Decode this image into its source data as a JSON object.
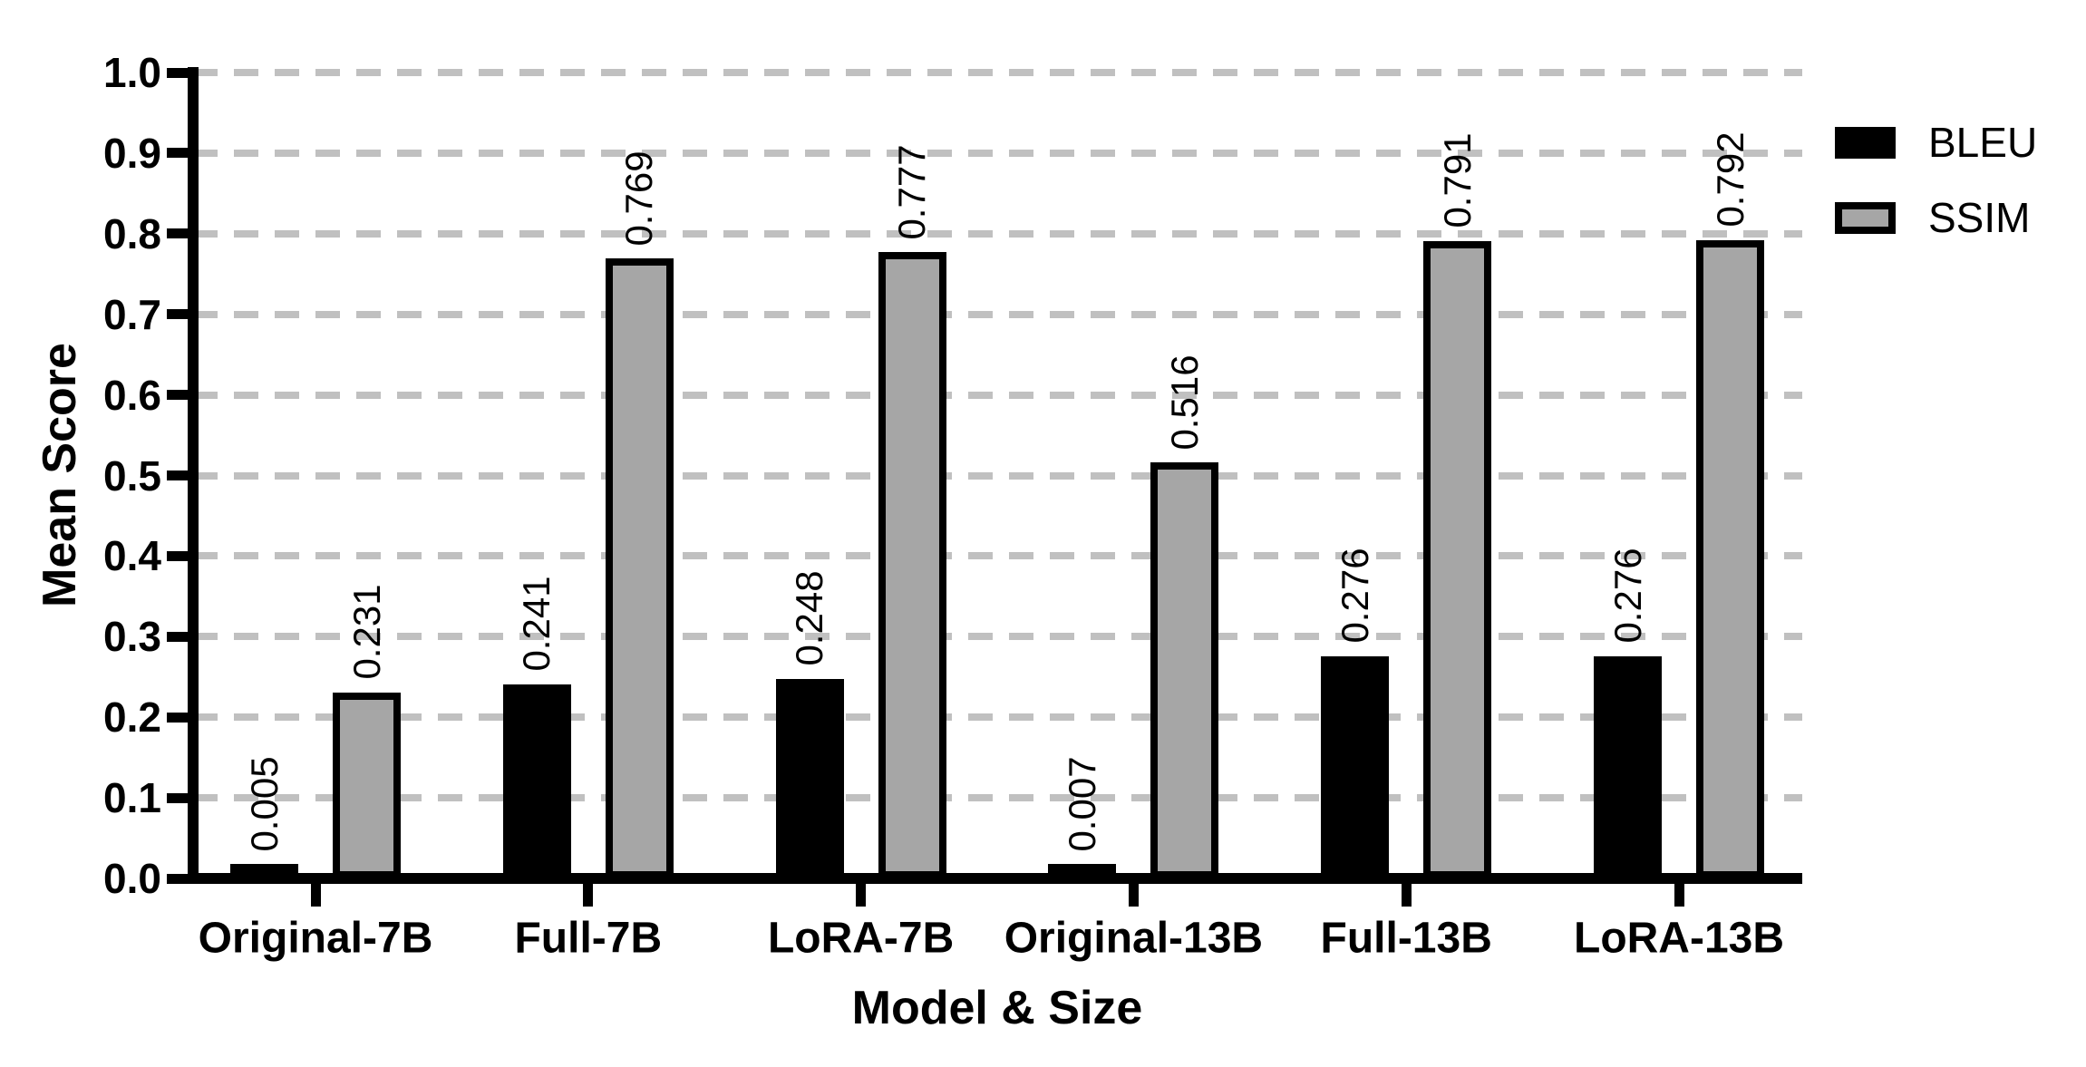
{
  "chart_data": {
    "type": "bar",
    "title": "",
    "xlabel": "Model & Size",
    "ylabel": "Mean Score",
    "categories": [
      "Original-7B",
      "Full-7B",
      "LoRA-7B",
      "Original-13B",
      "Full-13B",
      "LoRA-13B"
    ],
    "series": [
      {
        "name": "BLEU",
        "color": "#000000",
        "values": [
          0.005,
          0.241,
          0.248,
          0.007,
          0.276,
          0.276
        ],
        "labels": [
          "0.005",
          "0.241",
          "0.248",
          "0.007",
          "0.276",
          "0.276"
        ]
      },
      {
        "name": "SSIM",
        "color": "#a6a6a6",
        "values": [
          0.231,
          0.769,
          0.777,
          0.516,
          0.791,
          0.792
        ],
        "labels": [
          "0.231",
          "0.769",
          "0.777",
          "0.516",
          "0.791",
          "0.792"
        ]
      }
    ],
    "ylim": [
      0.0,
      1.0
    ],
    "yticks": [
      "0.0",
      "0.1",
      "0.2",
      "0.3",
      "0.4",
      "0.5",
      "0.6",
      "0.7",
      "0.8",
      "0.9",
      "1.0"
    ],
    "grid": "horizontal-dashed",
    "legend_position": "top-right",
    "bar_value_labels": "rotated-90"
  },
  "legend": {
    "items": [
      {
        "label": "BLEU",
        "swatch": "solid-black"
      },
      {
        "label": "SSIM",
        "swatch": "gray-black-outline"
      }
    ]
  },
  "colors": {
    "bar_black": "#000000",
    "bar_gray": "#a6a6a6",
    "gridline": "#c0c0c0",
    "axis": "#000000",
    "background": "#ffffff",
    "text": "#000000"
  }
}
